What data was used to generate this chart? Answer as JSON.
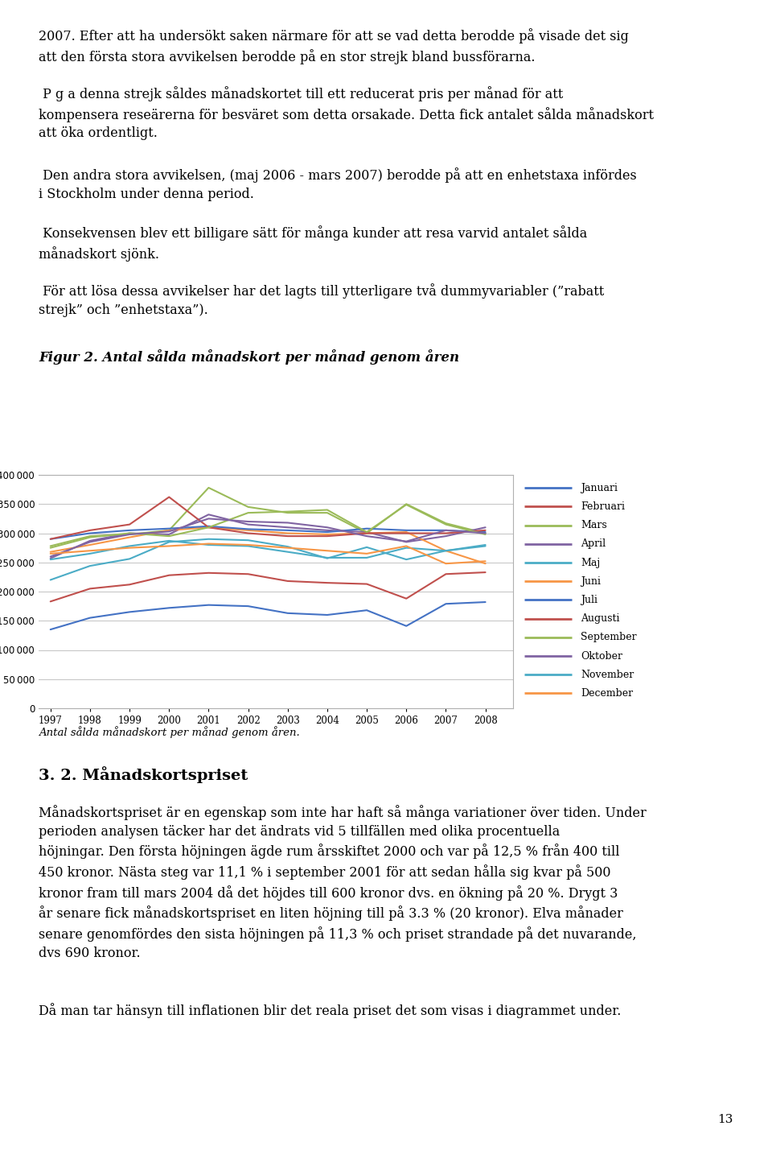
{
  "title": "Figur 2. Antal sålda månadskort per månad genom åren",
  "caption": "Antal sålda månadskort per månad genom åren.",
  "years": [
    1997,
    1998,
    1999,
    2000,
    2001,
    2002,
    2003,
    2004,
    2005,
    2006,
    2007,
    2008
  ],
  "series": {
    "Januari": {
      "color": "#4472C4",
      "values": [
        135000,
        155000,
        165000,
        172000,
        177000,
        175000,
        163000,
        160000,
        168000,
        141000,
        179000,
        182000
      ]
    },
    "Februari": {
      "color": "#C0504D",
      "values": [
        183000,
        205000,
        212000,
        228000,
        232000,
        230000,
        218000,
        215000,
        213000,
        188000,
        230000,
        233000
      ]
    },
    "Mars": {
      "color": "#9BBB59",
      "values": [
        278000,
        295000,
        298000,
        305000,
        378000,
        345000,
        335000,
        335000,
        300000,
        350000,
        317000,
        300000
      ]
    },
    "April": {
      "color": "#8064A2",
      "values": [
        257000,
        287000,
        300000,
        298000,
        332000,
        315000,
        310000,
        305000,
        302000,
        285000,
        295000,
        310000
      ]
    },
    "Maj": {
      "color": "#4BACC6",
      "values": [
        220000,
        244000,
        256000,
        285000,
        290000,
        288000,
        277000,
        257000,
        276000,
        255000,
        270000,
        280000
      ]
    },
    "Juni": {
      "color": "#F79646",
      "values": [
        268000,
        280000,
        293000,
        305000,
        310000,
        305000,
        300000,
        298000,
        300000,
        302000,
        270000,
        248000
      ]
    },
    "Juli": {
      "color": "#4472C4",
      "values": [
        290000,
        300000,
        305000,
        308000,
        312000,
        307000,
        305000,
        302000,
        308000,
        305000,
        305000,
        302000
      ]
    },
    "Augusti": {
      "color": "#C0504D",
      "values": [
        290000,
        305000,
        315000,
        362000,
        310000,
        300000,
        295000,
        295000,
        300000,
        300000,
        300000,
        305000
      ]
    },
    "September": {
      "color": "#9BBB59",
      "values": [
        275000,
        293000,
        300000,
        295000,
        310000,
        335000,
        337000,
        340000,
        302000,
        349000,
        315000,
        298000
      ]
    },
    "Oktober": {
      "color": "#8064A2",
      "values": [
        260000,
        285000,
        298000,
        303000,
        325000,
        320000,
        318000,
        310000,
        295000,
        286000,
        305000,
        300000
      ]
    },
    "November": {
      "color": "#4BACC6",
      "values": [
        255000,
        265000,
        278000,
        287000,
        280000,
        278000,
        268000,
        258000,
        258000,
        275000,
        270000,
        278000
      ]
    },
    "December": {
      "color": "#F79646",
      "values": [
        265000,
        270000,
        275000,
        278000,
        282000,
        280000,
        275000,
        270000,
        265000,
        278000,
        248000,
        252000
      ]
    }
  },
  "ylim": [
    0,
    400000
  ],
  "yticks": [
    0,
    50000,
    100000,
    150000,
    200000,
    250000,
    300000,
    350000,
    400000
  ],
  "background_color": "#ffffff",
  "grid_color": "#c8c8c8",
  "para1": "2007. Efter att ha undersökt saken närmare för att se vad detta berodde på visade det sig att den första stora avvikelsen berodde på en stor strejk bland bussförarna.",
  "para2": " P g a denna strejk såldes månadskortet till ett reducerat pris per månad för att kompensera reseärerna för besväret som detta orsakade. Detta fick antalet sålda månadskort att öka ordentligt.",
  "para3": " Den andra stora avvikelsen, (maj 2006 - mars 2007) berodde på att en enhetstaxa infördes i Stockholm under denna period.",
  "para4": " Konsekvensen blev ett billigare sätt för många kunder att resa varvid antalet sålda månadskort sjönk.",
  "para5": " För att lösa dessa avvikelser har det lagts till ytterligare två dummyvariabler (”rabatt strejk” och ”enhetstaxa”).",
  "fig_title": "Figur 2. Antal sålda månadskort per månad genom åren",
  "fig_caption": "Antal sålda månadskort per månad genom åren.",
  "section_title": "3. 2. Månadskortspriset",
  "bottom_para1": "Månadskortspriset är en egenskap som inte har haft så många variationer över tiden. Under perioden analysen täcker har det ändrats vid 5 tillfällen med olika procentuella höjningar. Den första höjningen ägde rum årsskiftet 2000 och var på 12,5 % från 400 till 450 kronor. Nästa steg var 11,1 % i september 2001 för att sedan hålla sig kvar på 500 kronor fram till mars 2004 då det höjdes till 600 kronor dvs. en ökning på 20 %. Drygt 3 år senare fick månadskortspriset en liten höjning till på 3.3 % (20 kronor). Elva månader senare genomfördes den sista höjningen på 11,3 % och priset strandade på det nuvarande, dvs 690 kronor.",
  "bottom_para2": "Då man tar hänsyn till inflationen blir det reala priset det som visas i diagrammet under.",
  "page_num": "13"
}
